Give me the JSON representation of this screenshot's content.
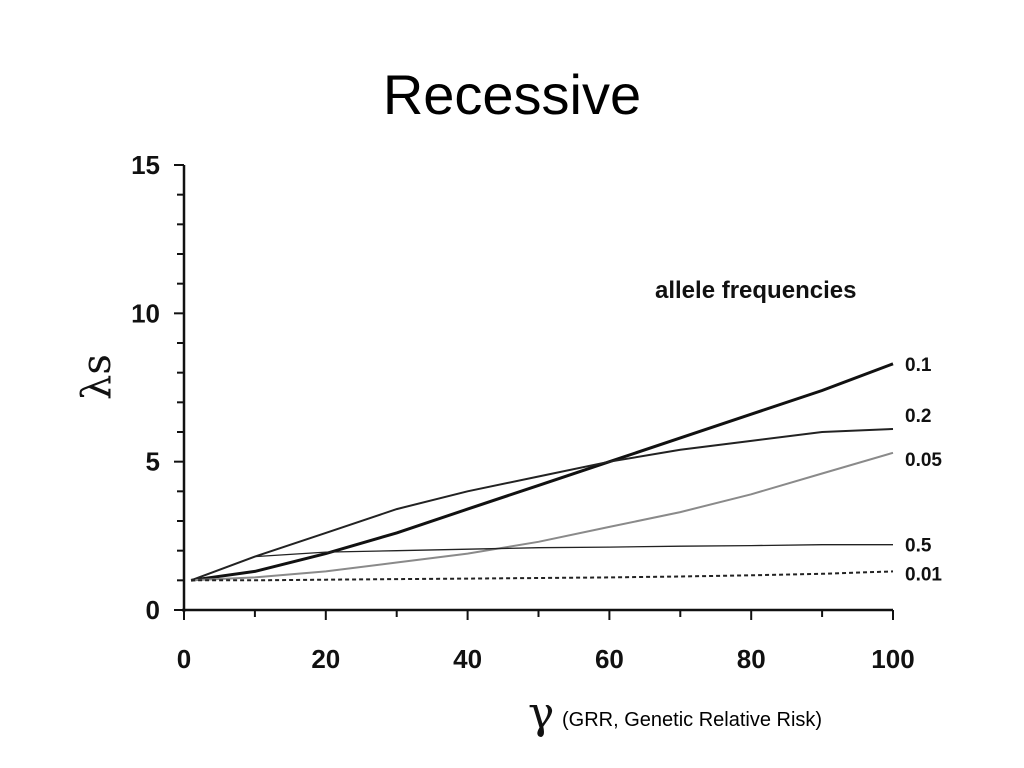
{
  "slide": {
    "title": "Recessive"
  },
  "chart_data": {
    "type": "line",
    "title": "",
    "ylabel": "λs",
    "xlabel_symbol": "γ",
    "xlabel_note": "(GRR, Genetic Relative Risk)",
    "legend_title": "allele frequencies",
    "xlim": [
      0,
      100
    ],
    "ylim": [
      0,
      15
    ],
    "x_ticks": [
      0,
      20,
      40,
      60,
      80,
      100
    ],
    "y_ticks": [
      0,
      5,
      10,
      15
    ],
    "x_minor_step": 10,
    "y_minor_step": 1,
    "grid": false,
    "series": [
      {
        "name": "0.1",
        "color": "#111111",
        "x": [
          1,
          10,
          20,
          30,
          40,
          50,
          60,
          70,
          80,
          90,
          100
        ],
        "y": [
          1.0,
          1.3,
          1.9,
          2.6,
          3.4,
          4.2,
          5.0,
          5.8,
          6.6,
          7.4,
          8.3
        ]
      },
      {
        "name": "0.2",
        "color": "#222222",
        "x": [
          1,
          10,
          20,
          30,
          40,
          50,
          60,
          70,
          80,
          90,
          100
        ],
        "y": [
          1.0,
          1.8,
          2.6,
          3.4,
          4.0,
          4.5,
          5.0,
          5.4,
          5.7,
          6.0,
          6.1
        ]
      },
      {
        "name": "0.05",
        "color": "#8a8a8a",
        "x": [
          1,
          10,
          20,
          30,
          40,
          50,
          60,
          70,
          80,
          90,
          100
        ],
        "y": [
          1.0,
          1.1,
          1.3,
          1.6,
          1.9,
          2.3,
          2.8,
          3.3,
          3.9,
          4.6,
          5.3
        ]
      },
      {
        "name": "0.5",
        "color": "#222222",
        "x": [
          1,
          10,
          20,
          30,
          40,
          50,
          60,
          70,
          80,
          90,
          100
        ],
        "y": [
          1.0,
          1.8,
          1.95,
          2.0,
          2.05,
          2.1,
          2.12,
          2.15,
          2.17,
          2.2,
          2.2
        ]
      },
      {
        "name": "0.01",
        "color": "#222222",
        "dashed": true,
        "x": [
          1,
          10,
          20,
          30,
          40,
          50,
          60,
          70,
          80,
          90,
          100
        ],
        "y": [
          1.0,
          1.0,
          1.02,
          1.04,
          1.06,
          1.08,
          1.1,
          1.13,
          1.17,
          1.22,
          1.3
        ]
      }
    ]
  }
}
